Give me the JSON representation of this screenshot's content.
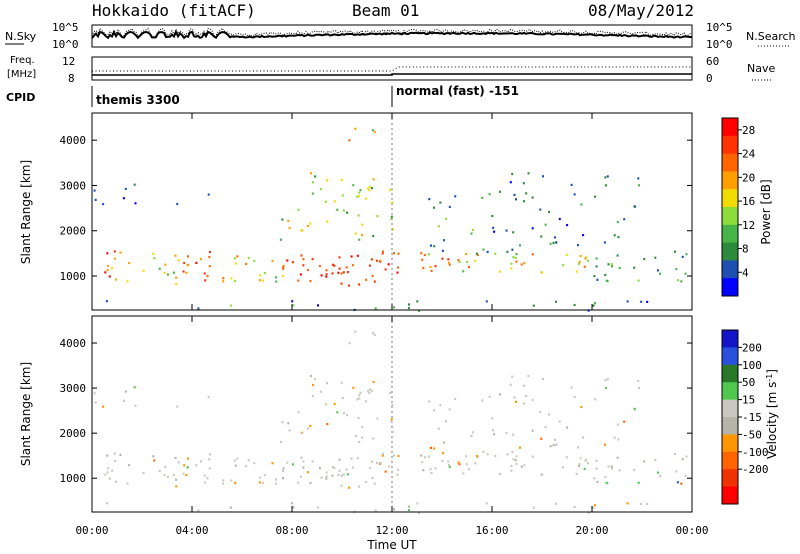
{
  "header": {
    "station": "Hokkaido (fitACF)",
    "beam": "Beam 01",
    "date": "08/May/2012"
  },
  "noise_panel": {
    "left_label": "N.Sky",
    "left_ticks": [
      "10^5",
      "10^0"
    ],
    "right_label": "N.Search",
    "right_ticks": [
      "10^5",
      "10^0"
    ]
  },
  "freq_panel": {
    "left_label_1": "Freq.",
    "left_label_2": "[MHz]",
    "left_ticks": [
      "12",
      "8"
    ],
    "right_label": "Nave",
    "right_ticks": [
      "60",
      "0"
    ]
  },
  "cpid_panel": {
    "label": "CPID",
    "segments": [
      "themis 3300",
      "normal (fast) -151"
    ]
  },
  "colors": {
    "power": [
      "#0000ff",
      "#1e50b4",
      "#2d8a3c",
      "#46b446",
      "#8cdc3c",
      "#f0dc00",
      "#ffa000",
      "#ff6400",
      "#ff3200",
      "#ff0000"
    ],
    "velocity": [
      "#1414c8",
      "#2850dc",
      "#287828",
      "#50c850",
      "#c8c8c0",
      "#b4b4a8",
      "#ff9600",
      "#ff6400",
      "#f03200",
      "#ff0000"
    ]
  },
  "chart_data": [
    {
      "type": "heatmap",
      "name": "power",
      "ylabel": "Slant Range [km]",
      "yticks": [
        "1000",
        "2000",
        "3000",
        "4000"
      ],
      "ylim": [
        250,
        4600
      ],
      "xlim": [
        0,
        24
      ],
      "colorbar": {
        "label": "Power [dB]",
        "ticks": [
          "4",
          "8",
          "12",
          "16",
          "20",
          "24",
          "28"
        ],
        "range": [
          0,
          30
        ]
      }
    },
    {
      "type": "heatmap",
      "name": "velocity",
      "ylabel": "Slant Range [km]",
      "yticks": [
        "1000",
        "2000",
        "3000",
        "4000"
      ],
      "ylim": [
        250,
        4600
      ],
      "xlim": [
        0,
        24
      ],
      "xlabel": "Time UT",
      "xticks": [
        "00:00",
        "04:00",
        "08:00",
        "12:00",
        "16:00",
        "20:00",
        "00:00"
      ],
      "colorbar": {
        "label": "Velocity [m s^-1]",
        "ticks": [
          "200",
          "100",
          "50",
          "15",
          "-15",
          "-50",
          "-100",
          "-200"
        ]
      }
    }
  ]
}
